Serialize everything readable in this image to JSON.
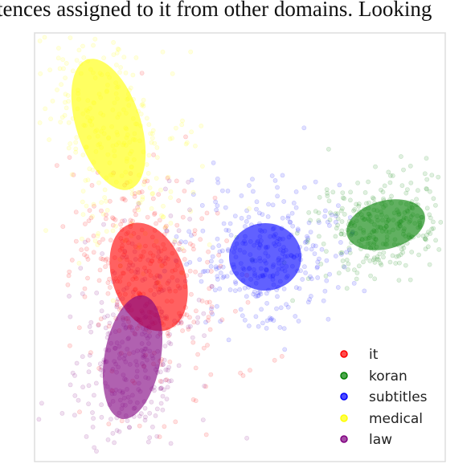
{
  "caption_fragment": "tences assigned to it from other domains. Looking",
  "colors": {
    "it": "#ff0000",
    "koran": "#008000",
    "subtitles": "#0000ff",
    "medical": "#ffff00",
    "law": "#800080",
    "frame": "#dddddd"
  },
  "chart_data": {
    "type": "scatter",
    "title": "",
    "xlabel": "",
    "ylabel": "",
    "axes_ticks": false,
    "grid": false,
    "legend_placement": "bottom-right",
    "legend": [
      "it",
      "koran",
      "subtitles",
      "medical",
      "law"
    ],
    "series": [
      {
        "name": "it",
        "color": "#ff0000",
        "cluster_center": [
          -1.0,
          -0.3
        ],
        "spread": [
          0.45,
          0.7
        ],
        "ellipse_angle_deg": -20
      },
      {
        "name": "koran",
        "color": "#008000",
        "cluster_center": [
          1.95,
          0.35
        ],
        "spread": [
          0.5,
          0.3
        ],
        "ellipse_angle_deg": -15
      },
      {
        "name": "subtitles",
        "color": "#0000ff",
        "cluster_center": [
          0.45,
          -0.05
        ],
        "spread": [
          0.45,
          0.42
        ],
        "ellipse_angle_deg": 0
      },
      {
        "name": "medical",
        "color": "#ffff00",
        "cluster_center": [
          -1.5,
          1.6
        ],
        "spread": [
          0.4,
          0.85
        ],
        "ellipse_angle_deg": -18
      },
      {
        "name": "law",
        "color": "#800080",
        "cluster_center": [
          -1.2,
          -1.3
        ],
        "spread": [
          0.35,
          0.78
        ],
        "ellipse_angle_deg": 10
      }
    ]
  }
}
